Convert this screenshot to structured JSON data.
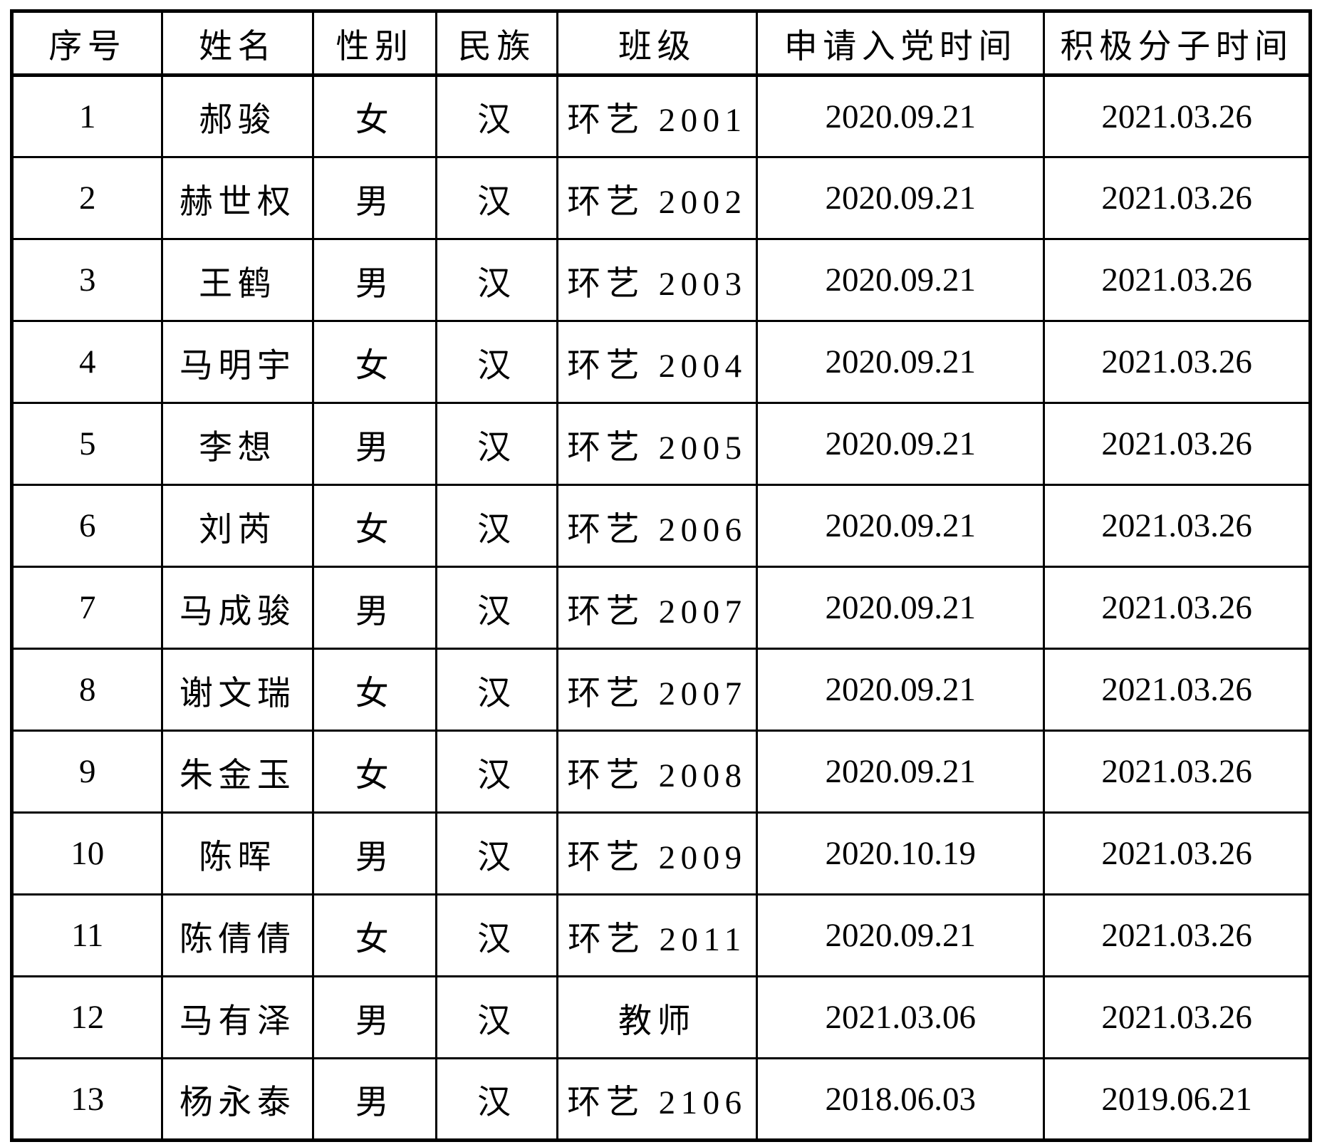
{
  "colors": {
    "background": "#ffffff",
    "border": "#000000",
    "text": "#000000"
  },
  "table": {
    "columns": [
      {
        "key": "index",
        "label": "序号"
      },
      {
        "key": "name",
        "label": "姓名"
      },
      {
        "key": "gender",
        "label": "性别"
      },
      {
        "key": "ethnicity",
        "label": "民族"
      },
      {
        "key": "class",
        "label": "班级"
      },
      {
        "key": "apply-date",
        "label": "申请入党时间"
      },
      {
        "key": "activist-date",
        "label": "积极分子时间"
      }
    ],
    "rows": [
      [
        "1",
        "郝骏",
        "女",
        "汉",
        "环艺 2001",
        "2020.09.21",
        "2021.03.26"
      ],
      [
        "2",
        "赫世权",
        "男",
        "汉",
        "环艺 2002",
        "2020.09.21",
        "2021.03.26"
      ],
      [
        "3",
        "王鹤",
        "男",
        "汉",
        "环艺 2003",
        "2020.09.21",
        "2021.03.26"
      ],
      [
        "4",
        "马明宇",
        "女",
        "汉",
        "环艺 2004",
        "2020.09.21",
        "2021.03.26"
      ],
      [
        "5",
        "李想",
        "男",
        "汉",
        "环艺 2005",
        "2020.09.21",
        "2021.03.26"
      ],
      [
        "6",
        "刘芮",
        "女",
        "汉",
        "环艺 2006",
        "2020.09.21",
        "2021.03.26"
      ],
      [
        "7",
        "马成骏",
        "男",
        "汉",
        "环艺 2007",
        "2020.09.21",
        "2021.03.26"
      ],
      [
        "8",
        "谢文瑞",
        "女",
        "汉",
        "环艺 2007",
        "2020.09.21",
        "2021.03.26"
      ],
      [
        "9",
        "朱金玉",
        "女",
        "汉",
        "环艺 2008",
        "2020.09.21",
        "2021.03.26"
      ],
      [
        "10",
        "陈晖",
        "男",
        "汉",
        "环艺 2009",
        "2020.10.19",
        "2021.03.26"
      ],
      [
        "11",
        "陈倩倩",
        "女",
        "汉",
        "环艺 2011",
        "2020.09.21",
        "2021.03.26"
      ],
      [
        "12",
        "马有泽",
        "男",
        "汉",
        "教师",
        "2021.03.06",
        "2021.03.26"
      ],
      [
        "13",
        "杨永泰",
        "男",
        "汉",
        "环艺 2106",
        "2018.06.03",
        "2019.06.21"
      ]
    ]
  }
}
